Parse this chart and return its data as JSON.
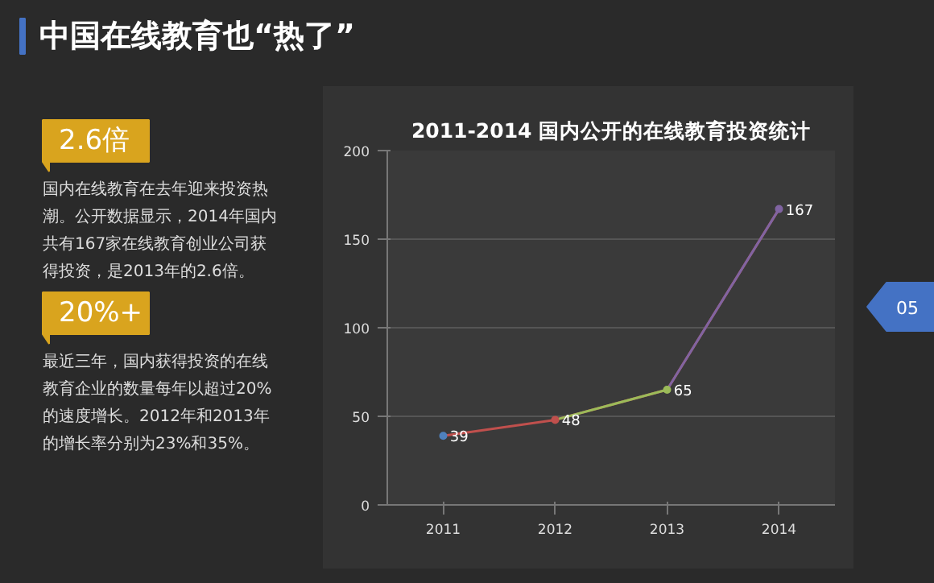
{
  "chart_data": [
    {
      "type": "other",
      "title": "中国在线教育也“热了”",
      "annotations": [
        "2.6倍",
        "国内在线教育在去年迎来投资热",
        "潮。公开数据显示，2014年国内",
        "共有167家在线教育创业公司获",
        "得投资，是2013年的2.6倍。",
        "20%+",
        "最近三年，国内获得投资的在线",
        "教育企业的数量每年以超过20%",
        "的速度增长。2012年和2013年",
        "的增长率分别为23%和35%。",
        "05"
      ]
    },
    {
      "type": "line",
      "title": "2011-2014 国内公开的在线教育投资统计",
      "categories": [
        "2011",
        "2012",
        "2013",
        "2014"
      ],
      "series": [
        {
          "values": [
            39,
            48,
            65,
            167
          ],
          "colors": [
            "#4f81bd",
            "#c0504d",
            "#9bbb59",
            "#8064a2"
          ]
        }
      ],
      "ylim": [
        0,
        200
      ],
      "yticks": [
        0,
        50,
        100,
        150,
        200
      ],
      "grid": "y",
      "data_labels": true,
      "marker": "circle"
    }
  ]
}
